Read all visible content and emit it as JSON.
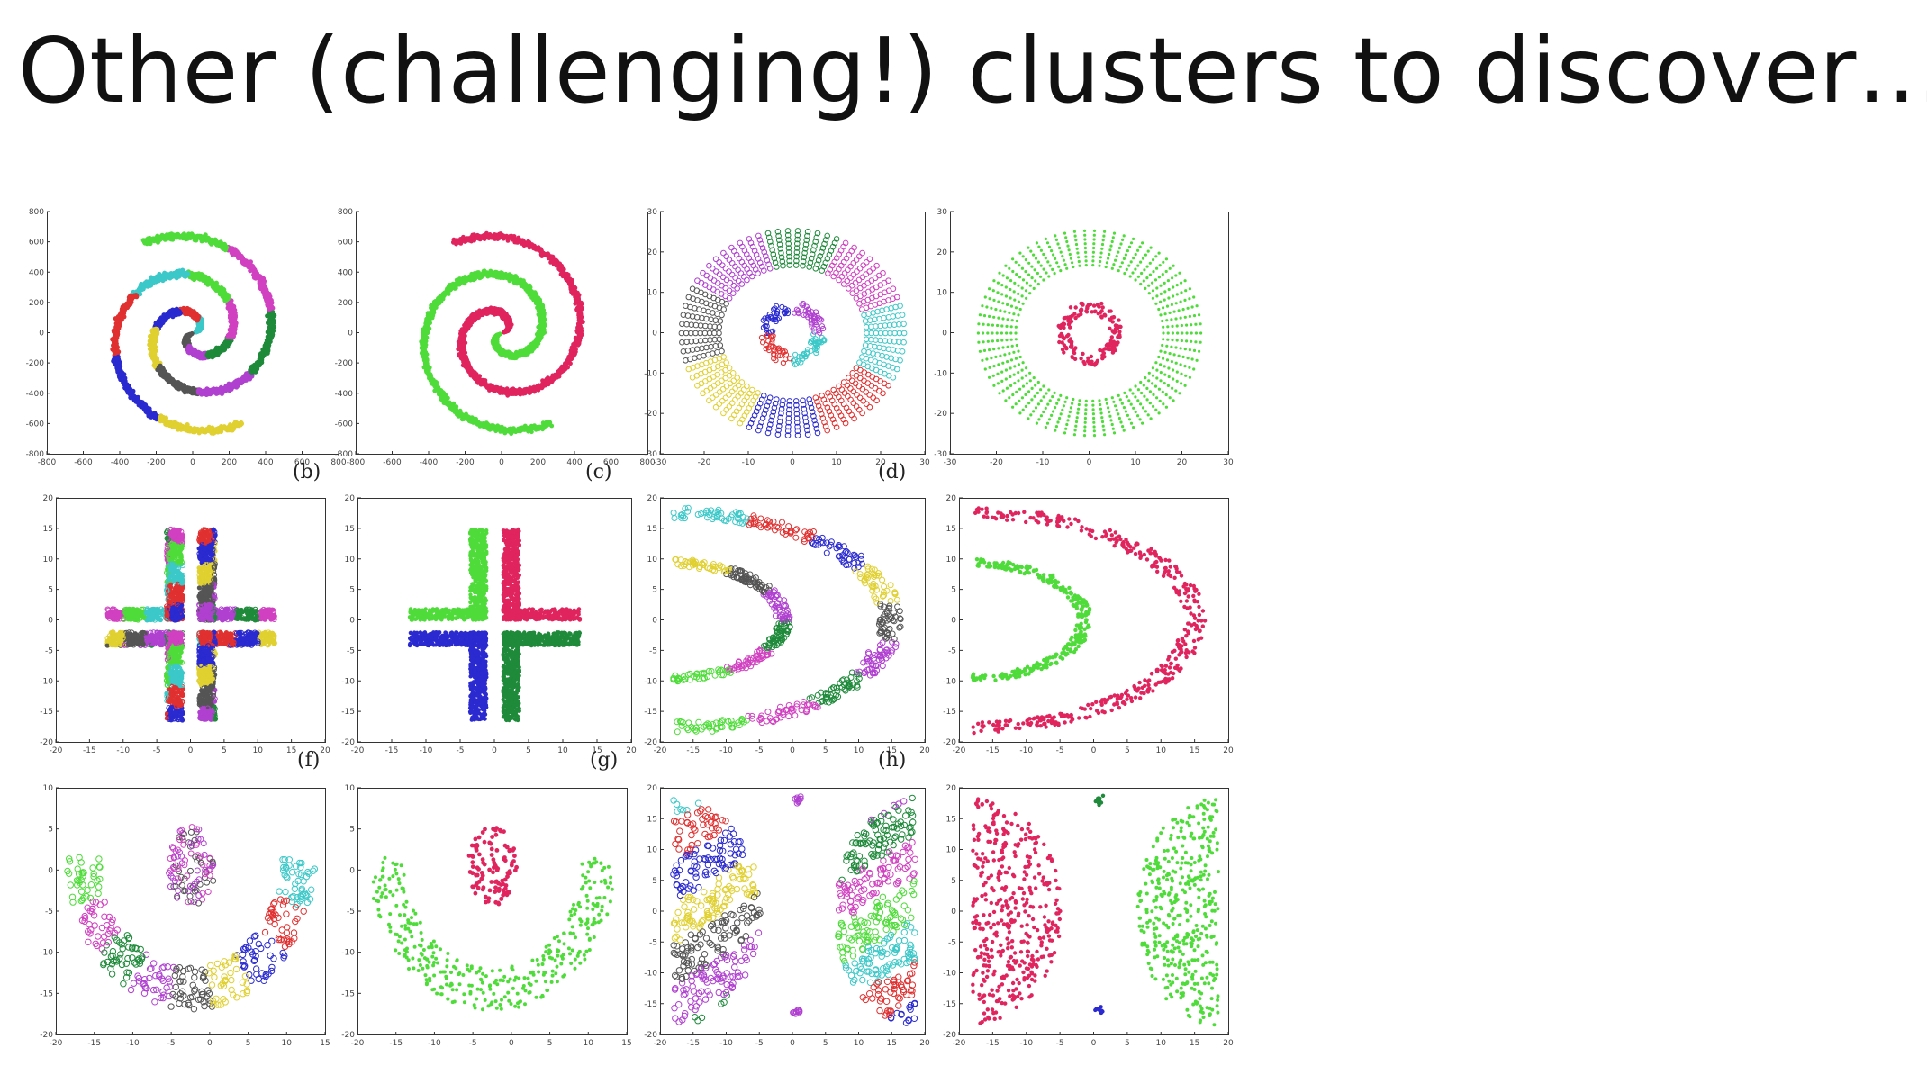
{
  "slide": {
    "title": "Other (challenging!) clusters to discover…"
  },
  "colors": {
    "pink": "#e0245e",
    "green": "#4fdc3a",
    "dark_green": "#1e8a3a",
    "blue": "#2a2ad0",
    "cyan": "#3cc8c8",
    "red": "#e03030",
    "yellow": "#e0d030",
    "purple": "#b040d0",
    "gray": "#555555",
    "magenta": "#d040c0"
  },
  "panels": [
    {
      "id": "spiral-multi",
      "caption": "(b)",
      "x_ticks": [
        "-800",
        "-600",
        "-400",
        "-200",
        "0",
        "200",
        "400",
        "600",
        "800"
      ],
      "y_ticks": [
        "800",
        "600",
        "400",
        "200",
        "0",
        "-200",
        "-400",
        "-600",
        "-800"
      ]
    },
    {
      "id": "spiral-two",
      "caption": "(c)",
      "x_ticks": [
        "-800",
        "-600",
        "-400",
        "-200",
        "0",
        "200",
        "400",
        "600",
        "800"
      ],
      "y_ticks": [
        "800",
        "600",
        "400",
        "200",
        "0",
        "-200",
        "-400",
        "-600",
        "-800"
      ]
    },
    {
      "id": "rings-multi",
      "caption": "(d)",
      "x_ticks": [
        "-30",
        "-20",
        "-10",
        "0",
        "10",
        "20",
        "30"
      ],
      "y_ticks": [
        "30",
        "20",
        "10",
        "0",
        "-10",
        "-20",
        "-30"
      ]
    },
    {
      "id": "rings-two",
      "caption": "",
      "x_ticks": [
        "-30",
        "-20",
        "-10",
        "0",
        "10",
        "20",
        "30"
      ],
      "y_ticks": [
        "30",
        "20",
        "10",
        "0",
        "-10",
        "-20",
        "-30"
      ]
    },
    {
      "id": "cross-multi",
      "caption": "(f)",
      "x_ticks": [
        "-20",
        "-15",
        "-10",
        "-5",
        "0",
        "5",
        "10",
        "15",
        "20"
      ],
      "y_ticks": [
        "20",
        "15",
        "10",
        "5",
        "0",
        "-5",
        "-10",
        "-15",
        "-20"
      ]
    },
    {
      "id": "cross-four",
      "caption": "(g)",
      "x_ticks": [
        "-20",
        "-15",
        "-10",
        "-5",
        "0",
        "5",
        "10",
        "15",
        "20"
      ],
      "y_ticks": [
        "20",
        "15",
        "10",
        "5",
        "0",
        "-5",
        "-10",
        "-15",
        "-20"
      ]
    },
    {
      "id": "arcs-multi",
      "caption": "(h)",
      "x_ticks": [
        "-20",
        "-15",
        "-10",
        "-5",
        "0",
        "5",
        "10",
        "15",
        "20"
      ],
      "y_ticks": [
        "20",
        "15",
        "10",
        "5",
        "0",
        "-5",
        "-10",
        "-15",
        "-20"
      ]
    },
    {
      "id": "arcs-two",
      "caption": "",
      "x_ticks": [
        "-20",
        "-15",
        "-10",
        "-5",
        "0",
        "5",
        "10",
        "15",
        "20"
      ],
      "y_ticks": [
        "20",
        "15",
        "10",
        "5",
        "0",
        "-5",
        "-10",
        "-15",
        "-20"
      ]
    },
    {
      "id": "smile-multi",
      "caption": "",
      "x_ticks": [
        "-20",
        "-15",
        "-10",
        "-5",
        "0",
        "5",
        "10",
        "15"
      ],
      "y_ticks": [
        "10",
        "5",
        "0",
        "-5",
        "-10",
        "-15",
        "-20"
      ]
    },
    {
      "id": "smile-two",
      "caption": "",
      "x_ticks": [
        "-20",
        "-15",
        "-10",
        "-5",
        "0",
        "5",
        "10",
        "15"
      ],
      "y_ticks": [
        "10",
        "5",
        "0",
        "-5",
        "-10",
        "-15",
        "-20"
      ]
    },
    {
      "id": "halves-multi",
      "caption": "",
      "x_ticks": [
        "-20",
        "-15",
        "-10",
        "-5",
        "0",
        "5",
        "10",
        "15",
        "20"
      ],
      "y_ticks": [
        "20",
        "15",
        "10",
        "5",
        "0",
        "-5",
        "-10",
        "-15",
        "-20"
      ]
    },
    {
      "id": "halves-four",
      "caption": "",
      "x_ticks": [
        "-20",
        "-15",
        "-10",
        "-5",
        "0",
        "5",
        "10",
        "15",
        "20"
      ],
      "y_ticks": [
        "20",
        "15",
        "10",
        "5",
        "0",
        "-5",
        "-10",
        "-15",
        "-20"
      ]
    }
  ]
}
